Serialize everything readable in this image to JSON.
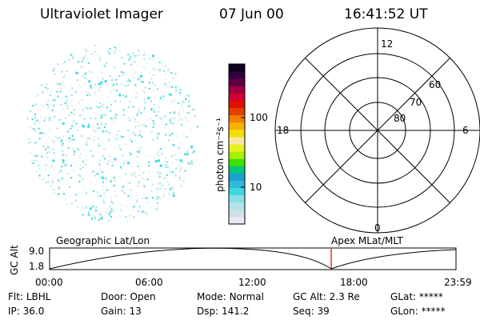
{
  "header": {
    "instrument": "Ultraviolet Imager",
    "date": "07 Jun 00",
    "time": "16:41:52 UT"
  },
  "colorbar": {
    "unit_label": "photon cm⁻²s⁻¹",
    "tick_labels": [
      "100",
      "10"
    ],
    "colors": [
      "#e8e8f0",
      "#cfe0e6",
      "#b2e4ea",
      "#88e0e6",
      "#40d8e0",
      "#30b8d8",
      "#1aa0d0",
      "#00c878",
      "#40e000",
      "#a8f000",
      "#e8f020",
      "#f8e8a0",
      "#f0e000",
      "#f8b000",
      "#f08000",
      "#e04000",
      "#e01000",
      "#d00030",
      "#a00040",
      "#600040",
      "#300040",
      "#100020"
    ]
  },
  "polar": {
    "labels": {
      "top": "12",
      "left": "18",
      "right": "6",
      "bottom": "0"
    },
    "rings": [
      "60",
      "70",
      "80"
    ]
  },
  "timeline": {
    "left_label": "Geographic Lat/Lon",
    "right_label": "Apex MLat/MLT",
    "axis_title": "GC Alt",
    "y_ticks": [
      "9.0",
      "1.8"
    ],
    "x_ticks": [
      "00:00",
      "06:00",
      "12:00",
      "18:00",
      "23:59"
    ],
    "marker_color": "#d00000"
  },
  "status": {
    "row1": [
      {
        "label": "Flt:",
        "value": "LBHL"
      },
      {
        "label": "Door:",
        "value": "Open"
      },
      {
        "label": "Mode:",
        "value": "Normal"
      },
      {
        "label": "GC Alt:",
        "value": "2.3 Re"
      },
      {
        "label": "GLat:",
        "value": "*****"
      }
    ],
    "row2": [
      {
        "label": "IP:",
        "value": "36.0"
      },
      {
        "label": "Gain:",
        "value": "13"
      },
      {
        "label": "Dsp:",
        "value": "141.2"
      },
      {
        "label": "Seq:",
        "value": "39"
      },
      {
        "label": "GLon:",
        "value": "*****"
      }
    ]
  }
}
